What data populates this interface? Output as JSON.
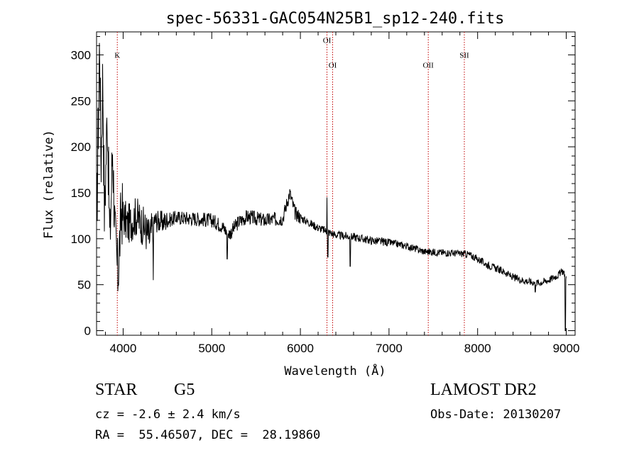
{
  "chart_data": {
    "type": "line",
    "title": "spec-56331-GAC054N25B1_sp12-240.fits",
    "xlabel": "Wavelength (Å)",
    "ylabel": "Flux (relative)",
    "xlim": [
      3700,
      9100
    ],
    "ylim": [
      -5,
      325
    ],
    "xticks": [
      "4000",
      "5000",
      "6000",
      "7000",
      "8000",
      "9000"
    ],
    "yticks": [
      "0",
      "50",
      "100",
      "150",
      "200",
      "250",
      "300"
    ],
    "xtick_values": [
      4000,
      5000,
      6000,
      7000,
      8000,
      9000
    ],
    "ytick_values": [
      0,
      50,
      100,
      150,
      200,
      250,
      300
    ],
    "grid": false,
    "line_color": "#000000",
    "marker_color": "#c00000",
    "spectrum_anchors": [
      [
        3700,
        110
      ],
      [
        3720,
        230
      ],
      [
        3735,
        320
      ],
      [
        3750,
        180
      ],
      [
        3770,
        280
      ],
      [
        3790,
        120
      ],
      [
        3820,
        240
      ],
      [
        3850,
        95
      ],
      [
        3880,
        200
      ],
      [
        3910,
        100
      ],
      [
        3940,
        60
      ],
      [
        3980,
        130
      ],
      [
        4050,
        115
      ],
      [
        4150,
        125
      ],
      [
        4250,
        110
      ],
      [
        4300,
        100
      ],
      [
        4350,
        120
      ],
      [
        4450,
        118
      ],
      [
        4600,
        123
      ],
      [
        4800,
        122
      ],
      [
        5000,
        120
      ],
      [
        5100,
        115
      ],
      [
        5200,
        105
      ],
      [
        5300,
        118
      ],
      [
        5400,
        124
      ],
      [
        5600,
        120
      ],
      [
        5800,
        122
      ],
      [
        5880,
        150
      ],
      [
        5940,
        128
      ],
      [
        6050,
        120
      ],
      [
        6200,
        112
      ],
      [
        6300,
        108
      ],
      [
        6400,
        104
      ],
      [
        6600,
        102
      ],
      [
        6800,
        98
      ],
      [
        7000,
        96
      ],
      [
        7200,
        92
      ],
      [
        7400,
        86
      ],
      [
        7600,
        85
      ],
      [
        7800,
        84
      ],
      [
        7900,
        83
      ],
      [
        8000,
        78
      ],
      [
        8100,
        72
      ],
      [
        8200,
        68
      ],
      [
        8300,
        64
      ],
      [
        8400,
        58
      ],
      [
        8500,
        55
      ],
      [
        8600,
        53
      ],
      [
        8700,
        52
      ],
      [
        8800,
        55
      ],
      [
        8900,
        60
      ],
      [
        8960,
        65
      ],
      [
        9000,
        58
      ]
    ],
    "spikes": [
      {
        "x": 4340,
        "y": 55
      },
      {
        "x": 5175,
        "y": 78
      },
      {
        "x": 6300,
        "y": 145
      },
      {
        "x": 6310,
        "y": 80
      },
      {
        "x": 6563,
        "y": 70
      },
      {
        "x": 8650,
        "y": 42
      },
      {
        "x": 8990,
        "y": 0
      }
    ],
    "lines": [
      {
        "label": "K",
        "x": 3934,
        "label_y": 297
      },
      {
        "label": "OI",
        "x": 6300,
        "label_y": 313
      },
      {
        "label": "OI",
        "x": 6364,
        "label_y": 286
      },
      {
        "label": "OII",
        "x": 7443,
        "label_y": 286
      },
      {
        "label": "SII",
        "x": 7850,
        "label_y": 297
      }
    ]
  },
  "info": {
    "obj_class": "STAR",
    "subclass": "G5",
    "survey": "LAMOST DR2",
    "velocity": "cz = -2.6 ± 2.4 km/s",
    "obs_date": "Obs-Date: 20130207",
    "coords": "RA =  55.46507, DEC =  28.19860"
  }
}
